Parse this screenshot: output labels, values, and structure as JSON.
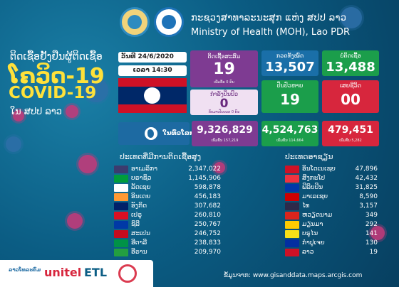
{
  "header": {
    "ministry_lao": "ກະຊວງສາທາລະນະສຸກ ແຫ່ງ ສປປ ລາວ",
    "ministry_en": "Ministry of Health (MOH), Lao PDR"
  },
  "title": {
    "lao_line": "ຕິດເຊື້ອຢັ້ງຢືນຜູ້ຕິດເຊື້ອ",
    "covid_lao": "ໂຄວິດ-19",
    "covid": "COVID-19",
    "country": "ໃນ ສປປ ລາວ"
  },
  "datetime": {
    "date": "ວັນທີ 24/6/2020",
    "time": "ເວລາ 14:30"
  },
  "laos": {
    "cumulative": {
      "label": "ຕິດເຊື້ອສະສົມ",
      "value": "19",
      "sub": "ເພີ່ມຂຶ້ນ 0 ຄົນ"
    },
    "active": {
      "label": "ກຳລັງປິ່ນປົວ",
      "value": "0",
      "sub": "ກັບມາເປັນບວກ 0 ຄົນ"
    },
    "tested": {
      "label": "ກວດທັງໝົດ",
      "value": "13,507"
    },
    "negative": {
      "label": "ບໍ່ຕິດເຊື້ອ",
      "value": "13,488"
    },
    "recovered": {
      "label": "ປິ່ນປົວຫາຍ",
      "value": "19"
    },
    "deaths": {
      "label": "ເສຍຊີວິດ",
      "value": "00"
    }
  },
  "world": {
    "label": "ໃນທົ່ວໂລກ",
    "cases": "9,326,829",
    "cases_sub": "ເພີ່ມຂຶ້ນ 157,219",
    "recovered": "4,524,763",
    "recovered_sub": "ເພີ່ມຂຶ້ນ 114,664",
    "deaths": "479,451",
    "deaths_sub": "ເພີ່ມຂຶ້ນ 5,282"
  },
  "top_countries": {
    "title": "ປະເທດທີ່ມີການຕິດເຊື້ອສູງ",
    "rows": [
      {
        "name": "ອາເມລິກາ",
        "value": "2,347,022",
        "flag": "#3c3b6e"
      },
      {
        "name": "ບຣາຊິວ",
        "value": "1,145,906",
        "flag": "#009c3b"
      },
      {
        "name": "ລັດເຊຍ",
        "value": "598,878",
        "flag": "#ffffff"
      },
      {
        "name": "ອິນເດຍ",
        "value": "456,183",
        "flag": "#ff9933"
      },
      {
        "name": "ອັງກິດ",
        "value": "307,682",
        "flag": "#012169"
      },
      {
        "name": "ເປຣູ",
        "value": "260,810",
        "flag": "#d91023"
      },
      {
        "name": "ຊິລີ",
        "value": "250,767",
        "flag": "#0039a6"
      },
      {
        "name": "ສະເປນ",
        "value": "246,752",
        "flag": "#c60b1e"
      },
      {
        "name": "ອີຕາລີ",
        "value": "238,833",
        "flag": "#009246"
      },
      {
        "name": "ອີຣານ",
        "value": "209,970",
        "flag": "#239f40"
      }
    ]
  },
  "region": {
    "title": "ປະເທດອາຊຽນ",
    "rows": [
      {
        "name": "ອິນໂດເນເຊຍ",
        "value": "47,896",
        "flag": "#ce1126"
      },
      {
        "name": "ສິງກະໂປ",
        "value": "42,432",
        "flag": "#ef3340"
      },
      {
        "name": "ຟິລິບປິນ",
        "value": "31,825",
        "flag": "#0038a8"
      },
      {
        "name": "ມາເລເຊຍ",
        "value": "8,590",
        "flag": "#cc0001"
      },
      {
        "name": "ໄທ",
        "value": "3,157",
        "flag": "#2d2a4a"
      },
      {
        "name": "ຫວຽດນາມ",
        "value": "349",
        "flag": "#da251d"
      },
      {
        "name": "ມຽນມາ",
        "value": "292",
        "flag": "#fecb00"
      },
      {
        "name": "ບຣູໄນ",
        "value": "141",
        "flag": "#f7e017"
      },
      {
        "name": "ກຳປູເຈຍ",
        "value": "130",
        "flag": "#032ea1"
      },
      {
        "name": "ລາວ",
        "value": "19",
        "flag": "#ce1126"
      }
    ]
  },
  "sponsors": {
    "lt": "ລາວໂທລະຄົມ",
    "unitel": "unitel",
    "etl": "ETL"
  },
  "source": "ຂໍ້ມູນຈາກ: www.gisanddata.maps.arcgis.com"
}
